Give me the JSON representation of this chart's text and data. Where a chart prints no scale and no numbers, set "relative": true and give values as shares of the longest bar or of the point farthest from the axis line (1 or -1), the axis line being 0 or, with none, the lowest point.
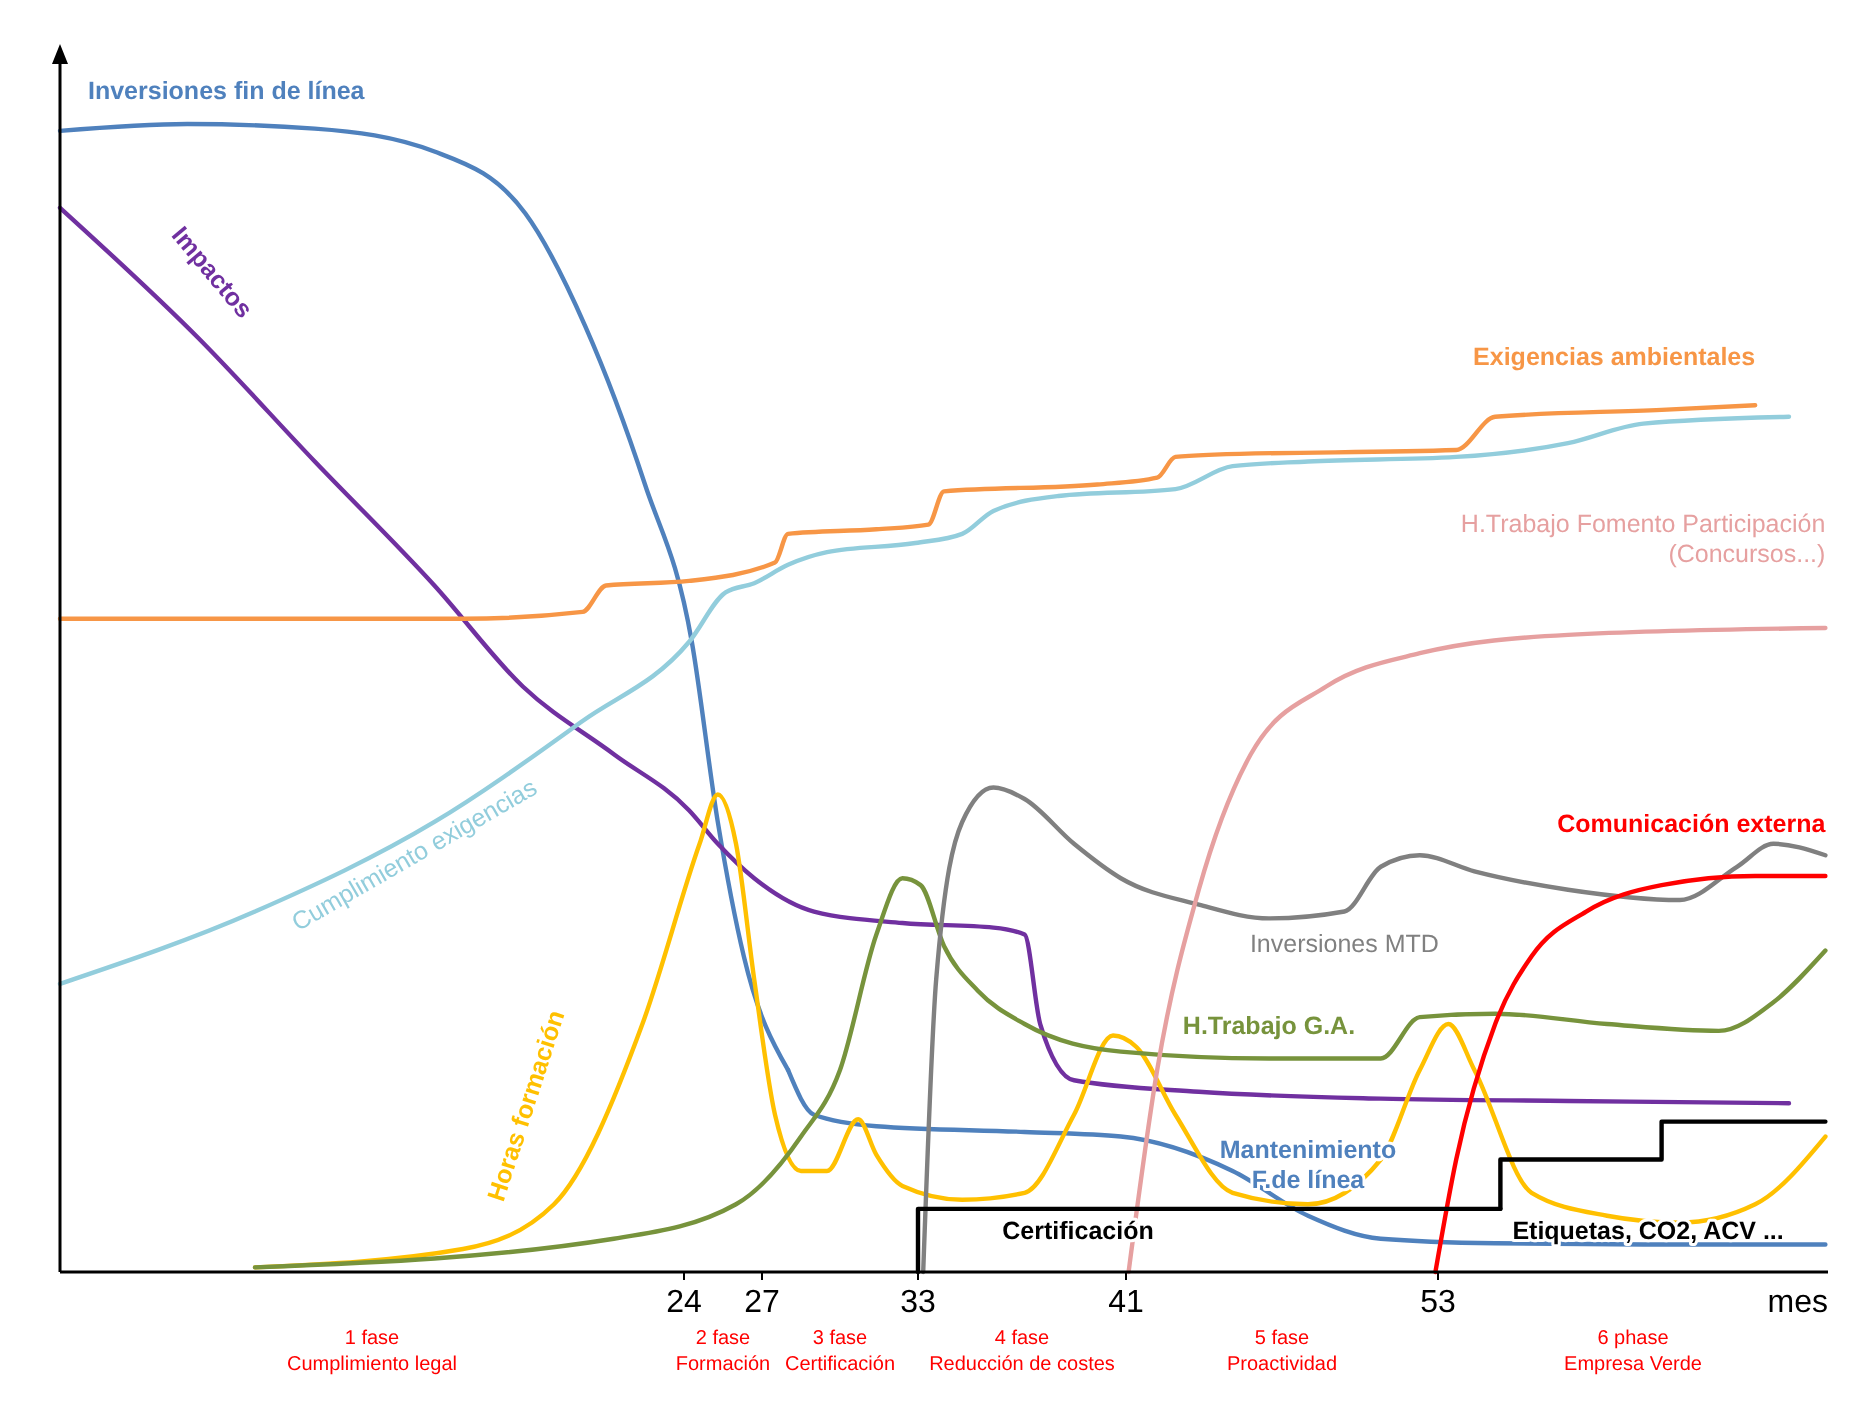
{
  "chart_data": {
    "type": "line",
    "relative": true,
    "xlabel": "mes",
    "xlim": [
      0,
      68
    ],
    "xticks": [
      24,
      27,
      33,
      41,
      53
    ],
    "annotations": [
      "1 fase\nCumplimiento legal",
      "2 fase\nFormación",
      "3 fase\nCertificación",
      "4 fase\nReducción de costes",
      "5 fase\nProactividad",
      "6 phase\nEmpresa Verde"
    ],
    "series": [
      {
        "name": "Inversiones fin de línea",
        "color": "#4f81bd",
        "x": [
          0,
          4.9,
          9.8,
          14.4,
          17.9,
          20.2,
          22.5,
          24.3,
          25.3,
          26.3,
          28.0
        ],
        "values": [
          0.994,
          1,
          0.996,
          0.976,
          0.922,
          0.824,
          0.686,
          0.549,
          0.392,
          0.275,
          0.176
        ]
      },
      {
        "name": "Mantenimiento F.de línea",
        "color": "#4f81bd",
        "x": [
          28.0,
          29.0,
          31.4,
          37.1,
          40.8,
          45.1,
          48.0,
          50.8,
          55.2,
          60.9,
          67.9
        ],
        "values": [
          0.176,
          0.137,
          0.127,
          0.122,
          0.118,
          0.088,
          0.049,
          0.029,
          0.025,
          0.024,
          0.024
        ]
      },
      {
        "name": "Impactos",
        "color": "#7030a0",
        "x": [
          0,
          5.3,
          9.8,
          14.4,
          17.8,
          21.3,
          24.2,
          25.3,
          26.7,
          29.0,
          32.4,
          35.9,
          37.1,
          37.7,
          39.0,
          43.8,
          50.8,
          58.0,
          66.5
        ],
        "values": [
          0.927,
          0.814,
          0.706,
          0.598,
          0.51,
          0.451,
          0.402,
          0.373,
          0.343,
          0.314,
          0.304,
          0.3,
          0.294,
          0.216,
          0.167,
          0.157,
          0.151,
          0.149,
          0.147
        ]
      },
      {
        "name": "Exigencias ambientales",
        "color": "#f79646",
        "x": [
          0,
          15.5,
          20.1,
          21.0,
          24.2,
          27.5,
          28.0,
          31.4,
          33.4,
          34.0,
          39.9,
          42.2,
          42.9,
          44.4,
          53.7,
          55.2,
          61.6,
          65.2
        ],
        "values": [
          0.569,
          0.569,
          0.575,
          0.598,
          0.602,
          0.618,
          0.643,
          0.647,
          0.651,
          0.68,
          0.686,
          0.692,
          0.71,
          0.712,
          0.716,
          0.745,
          0.751,
          0.755
        ]
      },
      {
        "name": "Cumplimiento exigencias",
        "color": "#92cddc",
        "x": [
          0,
          7.5,
          14.4,
          20.1,
          24.2,
          25.6,
          26.7,
          28.0,
          29.5,
          32.9,
          34.7,
          35.9,
          38.4,
          42.9,
          45.1,
          48.0,
          53.7,
          58.0,
          60.9,
          66.5
        ],
        "values": [
          0.251,
          0.314,
          0.392,
          0.48,
          0.549,
          0.592,
          0.6,
          0.616,
          0.627,
          0.635,
          0.643,
          0.663,
          0.676,
          0.682,
          0.702,
          0.706,
          0.71,
          0.722,
          0.739,
          0.745
        ]
      },
      {
        "name": "Horas formación",
        "color": "#ffc000",
        "x": [
          7.5,
          15.5,
          19.0,
          22.4,
          24.6,
          25.3,
          26.0,
          26.7,
          27.5,
          28.5,
          29.5,
          30.7,
          31.4,
          32.4,
          34.7,
          37.1,
          39.0,
          40.5,
          41.4,
          42.9,
          45.1,
          48.0,
          50.8,
          52.3,
          53.4,
          54.4,
          56.6,
          59.5,
          62.3,
          65.2,
          67.9
        ],
        "values": [
          0.004,
          0.02,
          0.059,
          0.216,
          0.373,
          0.416,
          0.373,
          0.255,
          0.137,
          0.088,
          0.088,
          0.133,
          0.102,
          0.075,
          0.063,
          0.069,
          0.137,
          0.206,
          0.196,
          0.137,
          0.069,
          0.059,
          0.098,
          0.176,
          0.216,
          0.176,
          0.069,
          0.049,
          0.043,
          0.059,
          0.118
        ]
      },
      {
        "name": "H.Trabajo G.A.",
        "color": "#77933c",
        "x": [
          7.5,
          21.3,
          26.0,
          28.5,
          30.0,
          31.4,
          32.4,
          33.1,
          34.0,
          35.3,
          37.1,
          40.8,
          46.5,
          50.8,
          52.3,
          55.2,
          59.5,
          63.8,
          65.9,
          67.9
        ],
        "values": [
          0.004,
          0.029,
          0.059,
          0.118,
          0.176,
          0.294,
          0.343,
          0.337,
          0.284,
          0.245,
          0.216,
          0.192,
          0.186,
          0.186,
          0.222,
          0.225,
          0.216,
          0.21,
          0.235,
          0.28
        ]
      },
      {
        "name": "Inversiones MTD",
        "color": "#808080",
        "x": [
          33.2,
          33.7,
          34.7,
          35.9,
          37.1,
          39.0,
          40.8,
          43.8,
          46.5,
          49.4,
          50.8,
          52.3,
          54.4,
          58.0,
          62.3,
          64.5,
          65.9,
          67.9
        ],
        "values": [
          0,
          0.255,
          0.392,
          0.422,
          0.412,
          0.373,
          0.343,
          0.32,
          0.308,
          0.314,
          0.353,
          0.363,
          0.349,
          0.333,
          0.324,
          0.353,
          0.373,
          0.363
        ]
      },
      {
        "name": "H.Trabajo Fomento Participación (Concursos...)",
        "color": "#e6a0a0",
        "x": [
          41.1,
          42.2,
          43.8,
          45.8,
          48.7,
          52.3,
          58.0,
          67.9
        ],
        "values": [
          0,
          0.176,
          0.333,
          0.451,
          0.51,
          0.539,
          0.555,
          0.561
        ]
      },
      {
        "name": "Comunicación externa",
        "color": "#ff0000",
        "x": [
          52.9,
          53.7,
          55.2,
          56.6,
          58.7,
          61.6,
          65.2,
          67.9
        ],
        "values": [
          0,
          0.098,
          0.216,
          0.275,
          0.314,
          0.337,
          0.345,
          0.345
        ]
      },
      {
        "name": "Certificación",
        "color": "#000000",
        "x": [
          33,
          33,
          55.4
        ],
        "values": [
          0,
          0.055,
          0.055
        ]
      },
      {
        "name": "Etiquetas, CO2, ACV ...",
        "color": "#000000",
        "x": [
          55.4,
          55.4,
          61.6,
          61.6,
          67.9
        ],
        "values": [
          0.055,
          0.098,
          0.098,
          0.131,
          0.131
        ]
      }
    ]
  }
}
